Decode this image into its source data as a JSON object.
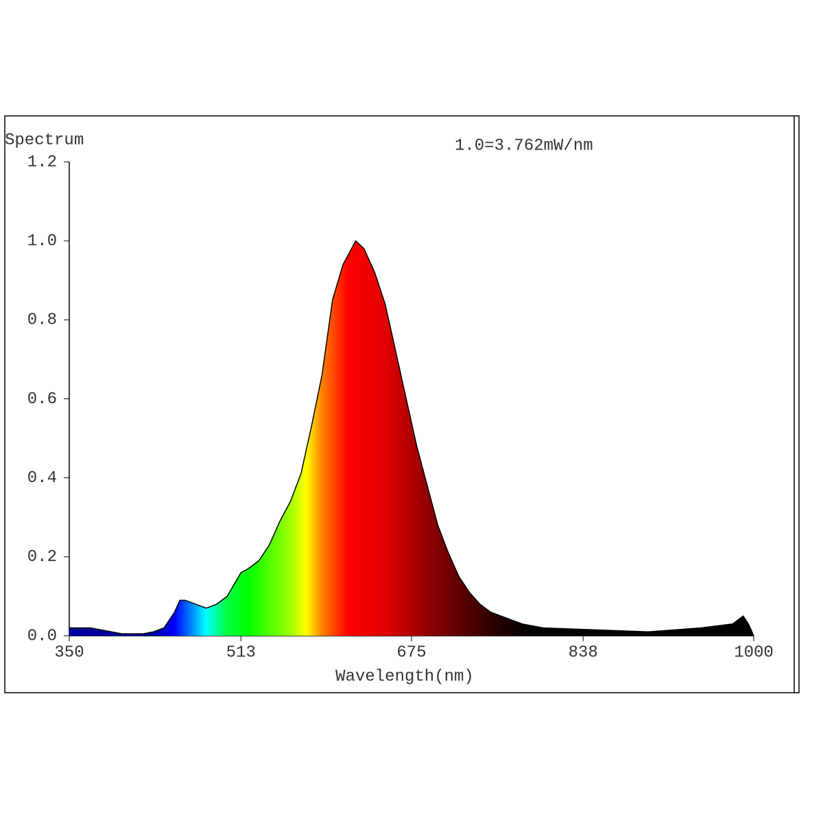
{
  "chart_data": {
    "type": "spectrum",
    "y_label": "Spectrum",
    "annotation": "1.0=3.762mW/nm",
    "x_label": "Wavelength(nm)",
    "x": [
      350,
      360,
      370,
      380,
      390,
      400,
      410,
      420,
      430,
      440,
      450,
      455,
      460,
      470,
      480,
      490,
      500,
      513,
      520,
      530,
      540,
      550,
      560,
      570,
      580,
      590,
      600,
      610,
      620,
      622,
      630,
      640,
      650,
      660,
      670,
      680,
      690,
      700,
      710,
      720,
      730,
      740,
      750,
      760,
      780,
      800,
      850,
      900,
      950,
      980,
      990,
      995,
      1000
    ],
    "values": [
      0.02,
      0.02,
      0.02,
      0.015,
      0.01,
      0.005,
      0.005,
      0.005,
      0.01,
      0.02,
      0.06,
      0.09,
      0.09,
      0.08,
      0.07,
      0.08,
      0.1,
      0.16,
      0.17,
      0.19,
      0.23,
      0.29,
      0.34,
      0.41,
      0.53,
      0.66,
      0.85,
      0.94,
      0.99,
      1.0,
      0.98,
      0.92,
      0.84,
      0.72,
      0.6,
      0.48,
      0.38,
      0.28,
      0.21,
      0.15,
      0.11,
      0.08,
      0.06,
      0.05,
      0.03,
      0.02,
      0.015,
      0.01,
      0.02,
      0.03,
      0.05,
      0.03,
      0
    ],
    "color": "#000000",
    "xlim": [
      350,
      1000
    ],
    "xticks": [
      350,
      513,
      675,
      838,
      1000
    ],
    "ylim": [
      0,
      1.2
    ],
    "yticks": [
      {
        "value": 0,
        "label": "0.0"
      },
      0.2,
      0.4,
      0.6,
      0.8,
      {
        "value": 1,
        "label": "1.0"
      },
      1.2
    ]
  }
}
